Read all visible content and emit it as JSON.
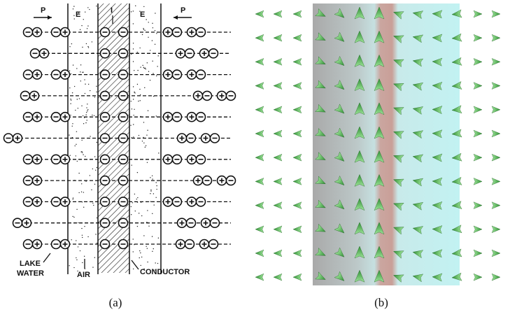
{
  "panel_a": {
    "labels": {
      "p_left": "P",
      "e_left": "E",
      "current": "I",
      "e_right": "E",
      "p_right": "P",
      "lake_water": [
        "LAKE",
        "WATER"
      ],
      "air": "AIR",
      "conductor": "CONDUCTOR"
    },
    "caption": "(a)"
  },
  "panel_b": {
    "caption": "(b)"
  }
}
